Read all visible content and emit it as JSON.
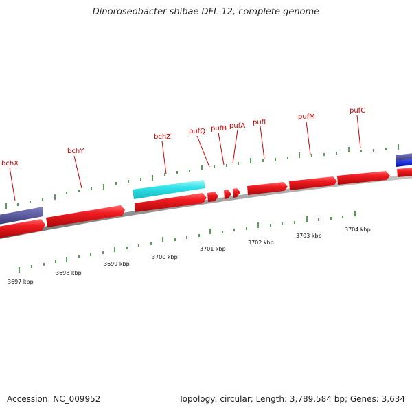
{
  "title": "Dinoroseobacter shibae DFL 12, complete genome",
  "footer": {
    "accession": "Accession: NC_009952",
    "summary": "Topology: circular; Length: 3,789,584 bp; Genes: 3,634"
  },
  "colors": {
    "forward_gene": "#e8151b",
    "reverse_gene": "#4a4a90",
    "highlight_gene": "#33e0e6",
    "blue_gene": "#0018d6",
    "label": "#cc0000",
    "tick": "#1a7a1a",
    "backbone": "#8a8a8a"
  },
  "gene_labels": [
    "bchX",
    "bchY",
    "bchZ",
    "pufQ",
    "pufB",
    "pufA",
    "pufL",
    "pufM",
    "pufC"
  ],
  "kbp_labels": [
    "3697 kbp",
    "3698 kbp",
    "3699 kbp",
    "3700 kbp",
    "3701 kbp",
    "3702 kbp",
    "3703 kbp",
    "3704 kbp"
  ]
}
